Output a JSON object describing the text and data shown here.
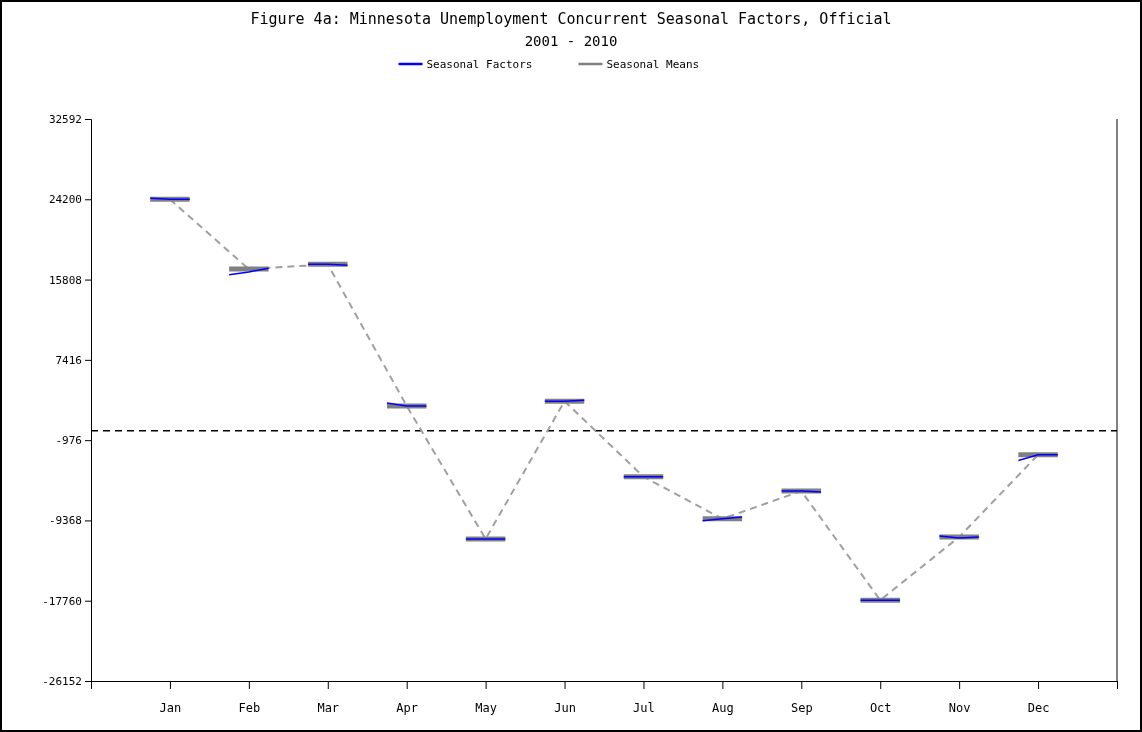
{
  "chart_data": {
    "type": "line",
    "title": "Figure 4a: Minnesota Unemployment Concurrent Seasonal Factors, Official",
    "subtitle": "2001 - 2010",
    "categories": [
      null,
      null,
      null,
      null,
      "Jan",
      null,
      null,
      null,
      "Feb",
      null,
      null,
      null,
      "Mar",
      null,
      null,
      null,
      "Apr",
      null,
      null,
      null,
      "May",
      null,
      null,
      null,
      "Jun",
      null,
      null,
      null,
      "Jul",
      null,
      null,
      null,
      "Aug",
      null,
      null,
      null,
      "Sep",
      null,
      null,
      null,
      "Oct",
      null,
      null,
      null,
      "Nov",
      null,
      null,
      null,
      "Dec",
      null,
      null,
      null,
      null
    ],
    "ylim": [
      -26152,
      32592
    ],
    "yticks": [
      -26152,
      -17760,
      -9368,
      -976,
      7416,
      15808,
      24200,
      32592
    ],
    "legend": "top",
    "marker": "none",
    "ref_lines": [
      {
        "axis": "y",
        "value": 0,
        "color": "#000000",
        "line_style": "dashed"
      }
    ],
    "series": [
      {
        "name": null,
        "color": "#a0a0a0",
        "line_style": "dashed",
        "x": [
          "Jan",
          "Feb",
          "Mar",
          "Apr",
          "May",
          "Jun",
          "Jul",
          "Aug",
          "Sep",
          "Oct",
          "Nov",
          "Dec"
        ],
        "values": [
          24200,
          16900,
          17400,
          2600,
          -11300,
          3100,
          -4800,
          -9200,
          -6300,
          -17700,
          -11100,
          -2500
        ]
      },
      {
        "name": "Seasonal Means",
        "color": "#808080",
        "line_style": "solid",
        "values": [
          null,
          null,
          null,
          24200,
          24200,
          24200,
          null,
          16900,
          16900,
          16900,
          null,
          17400,
          17400,
          17400,
          null,
          2600,
          2600,
          2600,
          null,
          -11300,
          -11300,
          -11300,
          null,
          3100,
          3100,
          3100,
          null,
          -4800,
          -4800,
          -4800,
          null,
          -9200,
          -9200,
          -9200,
          null,
          -6300,
          -6300,
          -6300,
          null,
          -17700,
          -17700,
          -17700,
          null,
          -11100,
          -11100,
          -11100,
          null,
          -2500,
          -2500,
          -2500,
          null,
          null,
          null
        ]
      },
      {
        "name": "Seasonal Factors",
        "color": "#0000ff",
        "line_style": "solid",
        "values": [
          null,
          null,
          null,
          24300,
          24200,
          24200,
          null,
          16300,
          16600,
          17000,
          null,
          17400,
          17400,
          17300,
          null,
          2900,
          2600,
          2600,
          null,
          -11300,
          -11300,
          -11300,
          null,
          3100,
          3100,
          3200,
          null,
          -4800,
          -4800,
          -4800,
          null,
          -9400,
          -9200,
          -9000,
          null,
          -6300,
          -6300,
          -6400,
          null,
          -17700,
          -17700,
          -17700,
          null,
          -11000,
          -11200,
          -11100,
          null,
          -3100,
          -2500,
          -2500,
          null,
          null,
          null
        ]
      }
    ]
  }
}
